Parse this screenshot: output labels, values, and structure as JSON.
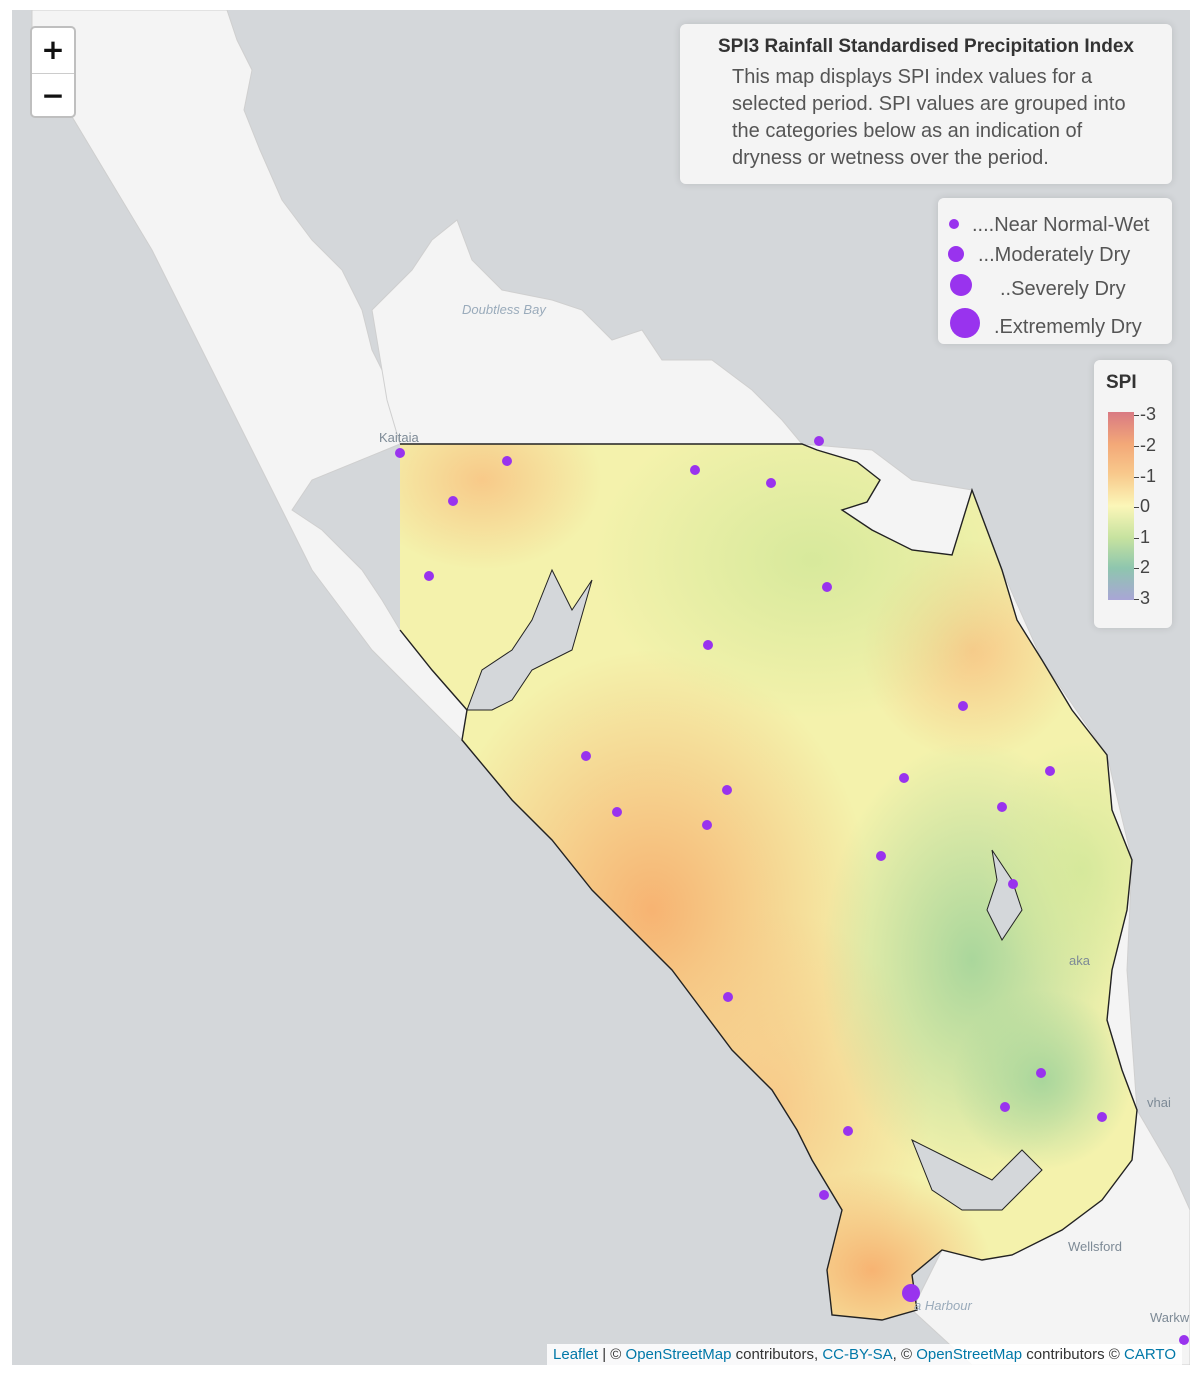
{
  "map": {
    "zoom_in_label": "+",
    "zoom_out_label": "−",
    "colors": {
      "water": "#d4d7da",
      "land": "#f4f4f4",
      "dot": "#9933ee"
    },
    "places": {
      "kaitaia": "Kaitaia",
      "doubtless_bay": "Doubtless Bay",
      "wellsford": "Wellsford",
      "harbour": "a Harbour",
      "kaka": "aka",
      "whai": "vhai",
      "warkw": "Warkw"
    }
  },
  "info": {
    "title": "SPI3 Rainfall Standardised Precipitation Index",
    "text": "This map displays SPI index values for a selected period. SPI values are grouped into the categories below as an indication of dryness or wetness over the period."
  },
  "size_legend": {
    "items": [
      {
        "label": "....Near Normal-Wet"
      },
      {
        "label": "...Moderately Dry"
      },
      {
        "label": "..Severely Dry"
      },
      {
        "label": ".Extrememly Dry"
      }
    ]
  },
  "spi_legend": {
    "title": "SPI",
    "ticks": [
      "-3",
      "-2",
      "-1",
      "0",
      "1",
      "2",
      "3"
    ],
    "colors": [
      "#d97a83",
      "#f3a878",
      "#f8c98c",
      "#fbf6b8",
      "#c6e29f",
      "#8ec6ae",
      "#a9a6d6"
    ]
  },
  "attribution": {
    "leaflet": "Leaflet",
    "sep1": " | © ",
    "osm1": "OpenStreetMap",
    "contrib1": " contributors, ",
    "ccbysa": "CC-BY-SA",
    "sep2": ", © ",
    "osm2": "OpenStreetMap",
    "contrib2": " contributors © ",
    "carto": "CARTO"
  }
}
